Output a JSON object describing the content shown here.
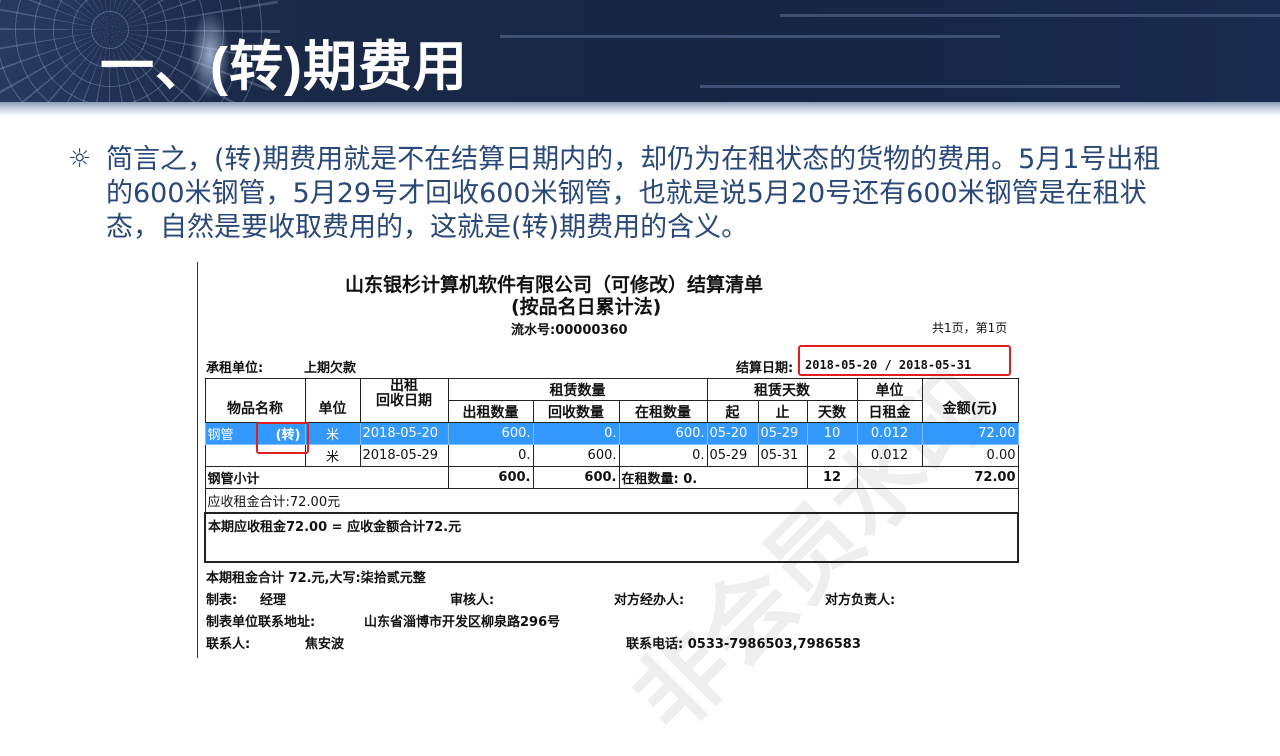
{
  "slide": {
    "title": "一、(转)期费用",
    "bullet_icon": "sun-bullet-icon",
    "paragraph": "简言之，(转)期费用就是不在结算日期内的，却仍为在租状态的货物的费用。5月1号出租的600米钢管，5月29号才回收600米钢管，也就是说5月20号还有600米钢管是在租状态，自然是要收取费用的，这就是(转)期费用的含义。"
  },
  "statement": {
    "title": "山东银杉计算机软件有限公司（可修改）结算清单",
    "subtitle": "(按品名日累计法)",
    "serial": "流水号:00000360",
    "pages": "共1页，第1页",
    "renter_label": "承租单位:",
    "renter_value": "上期欠款",
    "settle_label": "结算日期:",
    "settle_value": "2018-05-20 / 2018-05-31",
    "watermark": "非会员水印",
    "headers": {
      "name": "物品名称",
      "unit": "单位",
      "date": "出租\n回收日期",
      "qty_group": "租赁数量",
      "out": "出租数量",
      "back": "回收数量",
      "on": "在租数量",
      "days_group": "租赁天数",
      "start": "起",
      "end": "止",
      "days": "天数",
      "rate_top": "单位",
      "rate": "日租金",
      "amount": "金额(元)"
    },
    "rows": [
      {
        "name": "钢管",
        "tag": "(转)",
        "unit": "米",
        "date": "2018-05-20",
        "out": "600.",
        "back": "0.",
        "on": "600.",
        "start": "05-20",
        "end": "05-29",
        "days": "10",
        "rate": "0.012",
        "amount": "72.00",
        "selected": true
      },
      {
        "name": "",
        "tag": "",
        "unit": "米",
        "date": "2018-05-29",
        "out": "0.",
        "back": "600.",
        "on": "0.",
        "start": "05-29",
        "end": "05-31",
        "days": "2",
        "rate": "0.012",
        "amount": "0.00",
        "selected": false
      }
    ],
    "subtotal": {
      "label": "钢管小计",
      "out": "600.",
      "back": "600.",
      "on_label": "在租数量:",
      "on": "0.",
      "days": "12",
      "amount": "72.00"
    },
    "receivable": "应收租金合计:72.00元",
    "period_line": "本期应收租金72.00 = 应收金额合计72.元",
    "total_line": "本期租金合计   72.元,大写:柒拾贰元整",
    "maker_label": "制表:",
    "maker": "经理",
    "auditor": "审核人:",
    "handler": "对方经办人:",
    "responsible": "对方负责人:",
    "address_label": "制表单位联系地址:",
    "address": "山东省淄博市开发区柳泉路296号",
    "contact_label": "联系人:",
    "contact": "焦安波",
    "phone": "联系电话: 0533-7986503,7986583"
  },
  "colors": {
    "banner": "#1a2846",
    "text": "#2a4878",
    "highlight": "#3399ff",
    "annotation": "#e02020"
  }
}
